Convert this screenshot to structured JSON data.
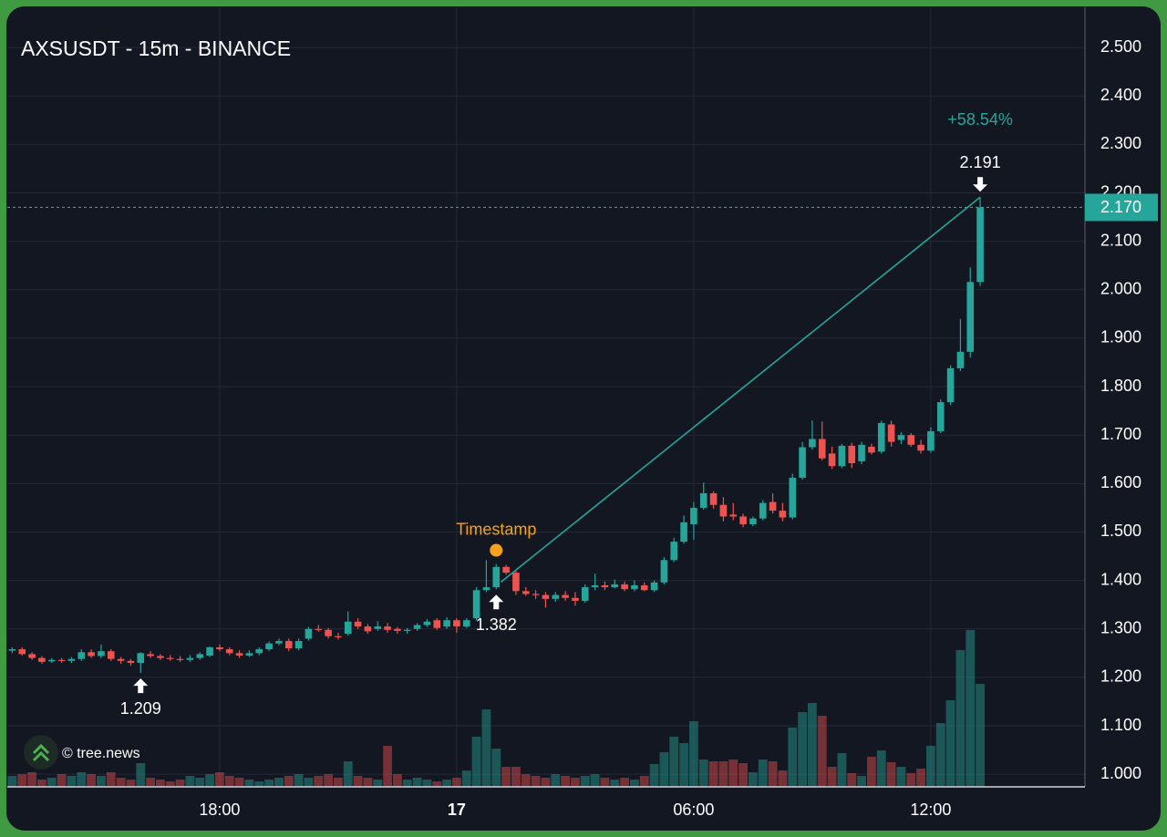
{
  "chart_data": {
    "type": "candlestick",
    "title": "AXSUSDT - 15m - BINANCE",
    "categories": [
      null,
      null,
      null,
      null,
      null,
      null,
      null,
      null,
      null,
      null,
      null,
      null,
      null,
      null,
      null,
      null,
      null,
      null,
      null,
      null,
      null,
      "18:00",
      null,
      null,
      null,
      null,
      null,
      null,
      null,
      null,
      null,
      null,
      null,
      null,
      null,
      null,
      null,
      null,
      null,
      null,
      null,
      null,
      null,
      null,
      null,
      "17",
      null,
      null,
      null,
      null,
      null,
      null,
      null,
      null,
      null,
      null,
      null,
      null,
      null,
      null,
      null,
      null,
      null,
      null,
      null,
      null,
      null,
      null,
      null,
      "06:00",
      null,
      null,
      null,
      null,
      null,
      null,
      null,
      null,
      null,
      null,
      null,
      null,
      null,
      null,
      null,
      null,
      null,
      null,
      null,
      null,
      null,
      null,
      null,
      "12:00",
      null,
      null,
      null,
      null,
      null
    ],
    "open": [
      1.255,
      1.258,
      1.248,
      1.24,
      1.233,
      1.236,
      1.234,
      1.238,
      1.252,
      1.244,
      1.254,
      1.238,
      1.234,
      1.23,
      1.248,
      1.244,
      1.24,
      1.238,
      1.236,
      1.24,
      1.245,
      1.262,
      1.258,
      1.25,
      1.245,
      1.25,
      1.258,
      1.27,
      1.275,
      1.26,
      1.28,
      1.3,
      1.298,
      1.285,
      1.29,
      1.315,
      1.305,
      1.3,
      1.305,
      1.3,
      1.296,
      1.3,
      1.308,
      1.318,
      1.305,
      1.318,
      1.305,
      1.322,
      1.38,
      1.386,
      1.428,
      1.416,
      1.378,
      1.372,
      1.37,
      1.362,
      1.37,
      1.364,
      1.358,
      1.386,
      1.39,
      1.386,
      1.392,
      1.382,
      1.39,
      1.38,
      1.396,
      1.442,
      1.48,
      1.516,
      1.55,
      1.58,
      1.556,
      1.536,
      1.532,
      1.516,
      1.528,
      1.562,
      1.544,
      1.53,
      1.612,
      1.675,
      1.692,
      1.662,
      1.636,
      1.678,
      1.646,
      1.676,
      1.666,
      1.722,
      1.69,
      1.7,
      1.68,
      1.668,
      1.708,
      1.768,
      1.838,
      1.872,
      2.016
    ],
    "high": [
      1.262,
      1.262,
      1.252,
      1.244,
      1.24,
      1.24,
      1.242,
      1.258,
      1.258,
      1.268,
      1.258,
      1.242,
      1.238,
      1.252,
      1.254,
      1.248,
      1.246,
      1.244,
      1.246,
      1.252,
      1.264,
      1.268,
      1.262,
      1.256,
      1.256,
      1.262,
      1.274,
      1.28,
      1.28,
      1.28,
      1.304,
      1.308,
      1.302,
      1.292,
      1.336,
      1.322,
      1.31,
      1.316,
      1.312,
      1.304,
      1.302,
      1.312,
      1.32,
      1.322,
      1.324,
      1.322,
      1.322,
      1.386,
      1.442,
      1.434,
      1.432,
      1.42,
      1.386,
      1.38,
      1.376,
      1.376,
      1.378,
      1.376,
      1.392,
      1.414,
      1.398,
      1.402,
      1.398,
      1.4,
      1.396,
      1.4,
      1.448,
      1.488,
      1.534,
      1.562,
      1.602,
      1.584,
      1.572,
      1.56,
      1.538,
      1.532,
      1.566,
      1.58,
      1.56,
      1.62,
      1.686,
      1.73,
      1.728,
      1.676,
      1.682,
      1.684,
      1.686,
      1.682,
      1.73,
      1.73,
      1.706,
      1.704,
      1.69,
      1.716,
      1.774,
      1.844,
      1.94,
      2.046,
      2.191
    ],
    "low": [
      1.25,
      1.245,
      1.236,
      1.228,
      1.23,
      1.23,
      1.23,
      1.234,
      1.24,
      1.24,
      1.234,
      1.228,
      1.224,
      1.209,
      1.24,
      1.236,
      1.234,
      1.232,
      1.232,
      1.236,
      1.242,
      1.254,
      1.246,
      1.24,
      1.242,
      1.246,
      1.254,
      1.266,
      1.254,
      1.256,
      1.276,
      1.294,
      1.28,
      1.278,
      1.286,
      1.3,
      1.29,
      1.296,
      1.292,
      1.29,
      1.29,
      1.296,
      1.304,
      1.298,
      1.3,
      1.292,
      1.302,
      1.318,
      1.376,
      1.382,
      1.412,
      1.37,
      1.368,
      1.362,
      1.344,
      1.356,
      1.358,
      1.348,
      1.354,
      1.38,
      1.38,
      1.384,
      1.378,
      1.378,
      1.378,
      1.376,
      1.392,
      1.438,
      1.476,
      1.484,
      1.546,
      1.548,
      1.522,
      1.524,
      1.51,
      1.512,
      1.524,
      1.538,
      1.522,
      1.526,
      1.608,
      1.67,
      1.648,
      1.63,
      1.632,
      1.632,
      1.64,
      1.66,
      1.662,
      1.676,
      1.682,
      1.676,
      1.662,
      1.664,
      1.704,
      1.762,
      1.832,
      1.86,
      2.008
    ],
    "close": [
      1.258,
      1.248,
      1.24,
      1.232,
      1.236,
      1.234,
      1.238,
      1.252,
      1.244,
      1.254,
      1.238,
      1.234,
      1.23,
      1.25,
      1.244,
      1.24,
      1.238,
      1.236,
      1.24,
      1.248,
      1.262,
      1.258,
      1.25,
      1.245,
      1.25,
      1.258,
      1.27,
      1.275,
      1.26,
      1.275,
      1.3,
      1.298,
      1.285,
      1.283,
      1.315,
      1.305,
      1.295,
      1.305,
      1.298,
      1.296,
      1.298,
      1.308,
      1.315,
      1.302,
      1.318,
      1.305,
      1.318,
      1.38,
      1.386,
      1.428,
      1.416,
      1.378,
      1.372,
      1.37,
      1.362,
      1.37,
      1.364,
      1.358,
      1.386,
      1.39,
      1.386,
      1.392,
      1.382,
      1.39,
      1.38,
      1.396,
      1.442,
      1.48,
      1.52,
      1.55,
      1.58,
      1.556,
      1.532,
      1.532,
      1.516,
      1.528,
      1.56,
      1.544,
      1.53,
      1.612,
      1.675,
      1.692,
      1.652,
      1.636,
      1.678,
      1.642,
      1.68,
      1.664,
      1.725,
      1.686,
      1.7,
      1.68,
      1.668,
      1.708,
      1.768,
      1.838,
      1.872,
      2.016,
      2.17
    ],
    "volume": [
      12,
      14,
      16,
      8,
      10,
      14,
      12,
      16,
      14,
      12,
      16,
      10,
      8,
      26,
      10,
      8,
      6,
      8,
      12,
      10,
      14,
      16,
      12,
      10,
      8,
      6,
      8,
      10,
      12,
      14,
      10,
      12,
      14,
      10,
      28,
      12,
      10,
      8,
      45,
      14,
      8,
      10,
      8,
      6,
      8,
      10,
      18,
      55,
      85,
      42,
      22,
      22,
      14,
      12,
      10,
      14,
      12,
      10,
      12,
      14,
      10,
      8,
      10,
      8,
      12,
      25,
      38,
      55,
      48,
      72,
      30,
      28,
      28,
      30,
      26,
      16,
      30,
      28,
      18,
      65,
      82,
      92,
      78,
      22,
      37,
      15,
      12,
      33,
      40,
      27,
      22,
      15,
      20,
      45,
      70,
      95,
      150,
      172,
      113
    ],
    "up_color": "#26a69a",
    "down_color": "#ef5350",
    "ylim": [
      0.974,
      2.583
    ],
    "yticks": [
      {
        "value": 1.0,
        "label": "1.000"
      },
      {
        "value": 1.1,
        "label": "1.100"
      },
      {
        "value": 1.2,
        "label": "1.200"
      },
      {
        "value": 1.3,
        "label": "1.300"
      },
      {
        "value": 1.4,
        "label": "1.400"
      },
      {
        "value": 1.5,
        "label": "1.500"
      },
      {
        "value": 1.6,
        "label": "1.600"
      },
      {
        "value": 1.7,
        "label": "1.700"
      },
      {
        "value": 1.8,
        "label": "1.800"
      },
      {
        "value": 1.9,
        "label": "1.900"
      },
      {
        "value": 2.0,
        "label": "2.000"
      },
      {
        "value": 2.1,
        "label": "2.100"
      },
      {
        "value": 2.2,
        "label": "2.200"
      },
      {
        "value": 2.3,
        "label": "2.300"
      },
      {
        "value": 2.4,
        "label": "2.400"
      },
      {
        "value": 2.5,
        "label": "2.500"
      }
    ],
    "grid": true,
    "last_price": {
      "value": 2.17,
      "label": "2.170"
    },
    "markers": [
      {
        "value": 1.209,
        "side": "low"
      },
      {
        "value": 1.382,
        "side": "low"
      },
      {
        "value": 2.191,
        "side": "high"
      }
    ],
    "change": {
      "value": 58.54,
      "label": "+58.54%"
    },
    "timestamp_label": "Timestamp"
  },
  "watermark": "© tree.news"
}
